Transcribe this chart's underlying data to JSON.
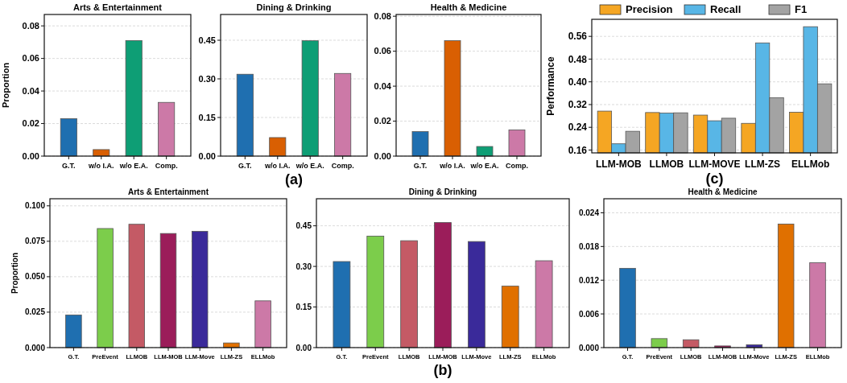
{
  "chart_data": [
    {
      "type": "bar",
      "title": "Arts & Entertainment",
      "ylabel": "Proportion",
      "categories": [
        "G.T.",
        "w/o I.A.",
        "w/o E.A.",
        "Comp."
      ],
      "values": [
        0.023,
        0.004,
        0.071,
        0.033
      ],
      "colors": [
        "#1f6fb0",
        "#d95f02",
        "#0e9e75",
        "#cc79a7"
      ],
      "ylim": [
        0,
        0.087
      ],
      "yticks": [
        {
          "value": 0,
          "label": "0.00"
        },
        {
          "value": 0.02,
          "label": "0.02"
        },
        {
          "value": 0.04,
          "label": "0.04"
        },
        {
          "value": 0.06,
          "label": "0.06"
        },
        {
          "value": 0.08,
          "label": "0.08"
        }
      ],
      "grid": "y"
    },
    {
      "type": "bar",
      "title": "Dining & Drinking",
      "categories": [
        "G.T.",
        "w/o I.A.",
        "w/o E.A.",
        "Comp."
      ],
      "values": [
        0.318,
        0.072,
        0.448,
        0.321
      ],
      "colors": [
        "#1f6fb0",
        "#d95f02",
        "#0e9e75",
        "#cc79a7"
      ],
      "ylim": [
        0,
        0.55
      ],
      "yticks": [
        {
          "value": 0,
          "label": "0.00"
        },
        {
          "value": 0.15,
          "label": "0.15"
        },
        {
          "value": 0.3,
          "label": "0.30"
        },
        {
          "value": 0.45,
          "label": "0.45"
        }
      ],
      "grid": "y",
      "annotations": [
        "(a)"
      ]
    },
    {
      "type": "bar",
      "title": "Health & Medicine",
      "categories": [
        "G.T.",
        "w/o I.A.",
        "w/o E.A.",
        "Comp."
      ],
      "values": [
        0.014,
        0.066,
        0.0055,
        0.015
      ],
      "colors": [
        "#1f6fb0",
        "#d95f02",
        "#0e9e75",
        "#cc79a7"
      ],
      "ylim": [
        0,
        0.081
      ],
      "yticks": [
        {
          "value": 0,
          "label": "0.00"
        },
        {
          "value": 0.02,
          "label": "0.02"
        },
        {
          "value": 0.04,
          "label": "0.04"
        },
        {
          "value": 0.06,
          "label": "0.06"
        },
        {
          "value": 0.08,
          "label": "0.08"
        }
      ],
      "grid": "y"
    },
    {
      "type": "bar",
      "ylabel": "Performance",
      "categories": [
        "LLM-MOB",
        "LLMOB",
        "LLM-MOVE",
        "LLM-ZS",
        "ELLMob"
      ],
      "series": [
        {
          "name": "Precision",
          "color": "#f5a623",
          "values": [
            0.297,
            0.292,
            0.283,
            0.254,
            0.293
          ]
        },
        {
          "name": "Recall",
          "color": "#58b6e6",
          "values": [
            0.182,
            0.29,
            0.263,
            0.537,
            0.594
          ]
        },
        {
          "name": "F1",
          "color": "#a3a3a3",
          "values": [
            0.226,
            0.291,
            0.272,
            0.344,
            0.393
          ]
        }
      ],
      "ylim": [
        0.15,
        0.62
      ],
      "yticks": [
        0.16,
        0.24,
        {
          "value": 0.32,
          "label": "0.32"
        },
        {
          "value": 0.4,
          "label": "0.40"
        },
        0.48,
        0.56
      ],
      "grid": "y",
      "legend": "top",
      "annotations": [
        "(c)"
      ]
    },
    {
      "type": "bar",
      "title": "Arts & Entertainment",
      "ylabel": "Proportion",
      "categories": [
        "G.T.",
        "PreEvent",
        "LLMOB",
        "LLM-MOB",
        "LLM-Move",
        "LLM-ZS",
        "ELLMob"
      ],
      "values": [
        0.023,
        0.084,
        0.087,
        0.0805,
        0.082,
        0.0033,
        0.033
      ],
      "colors": [
        "#1f6fb0",
        "#7ccd4b",
        "#c45a65",
        "#9b1d5a",
        "#3a2a9a",
        "#e07000",
        "#cc79a7"
      ],
      "ylim": [
        0,
        0.105
      ],
      "yticks": [
        {
          "value": 0,
          "label": "0.000"
        },
        {
          "value": 0.025,
          "label": "0.025"
        },
        {
          "value": 0.05,
          "label": "0.050"
        },
        {
          "value": 0.075,
          "label": "0.075"
        },
        {
          "value": 0.1,
          "label": "0.100"
        }
      ],
      "grid": "y"
    },
    {
      "type": "bar",
      "title": "Dining & Drinking",
      "categories": [
        "G.T.",
        "PreEvent",
        "LLMOB",
        "LLM-MOB",
        "LLM-Move",
        "LLM-ZS",
        "ELLMob"
      ],
      "values": [
        0.318,
        0.412,
        0.395,
        0.462,
        0.392,
        0.227,
        0.321
      ],
      "colors": [
        "#1f6fb0",
        "#7ccd4b",
        "#c45a65",
        "#9b1d5a",
        "#3a2a9a",
        "#e07000",
        "#cc79a7"
      ],
      "ylim": [
        0,
        0.55
      ],
      "yticks": [
        {
          "value": 0,
          "label": "0.00"
        },
        {
          "value": 0.15,
          "label": "0.15"
        },
        {
          "value": 0.3,
          "label": "0.30"
        },
        {
          "value": 0.45,
          "label": "0.45"
        }
      ],
      "grid": "y",
      "annotations": [
        "(b)"
      ]
    },
    {
      "type": "bar",
      "title": "Health & Medicine",
      "categories": [
        "G.T.",
        "PreEvent",
        "LLMOB",
        "LLM-MOB",
        "LLM-Move",
        "LLM-ZS",
        "ELLMob"
      ],
      "values": [
        0.0141,
        0.0016,
        0.0014,
        0.0003,
        0.0005,
        0.022,
        0.0151
      ],
      "colors": [
        "#1f6fb0",
        "#7ccd4b",
        "#c45a65",
        "#9b1d5a",
        "#3a2a9a",
        "#e07000",
        "#cc79a7"
      ],
      "ylim": [
        0,
        0.0265
      ],
      "yticks": [
        {
          "value": 0,
          "label": "0.000"
        },
        {
          "value": 0.006,
          "label": "0.006"
        },
        {
          "value": 0.012,
          "label": "0.012"
        },
        {
          "value": 0.018,
          "label": "0.018"
        },
        {
          "value": 0.024,
          "label": "0.024"
        }
      ],
      "grid": "y"
    }
  ]
}
